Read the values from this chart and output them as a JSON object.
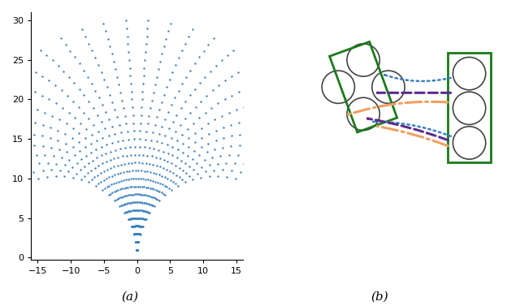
{
  "fig_width": 6.4,
  "fig_height": 3.77,
  "dpi": 100,
  "dot_color": "#3a7fc1",
  "dot_size": 3,
  "n_trajectories": 30,
  "n_steps": 30,
  "label_a": "(a)",
  "label_b": "(b)",
  "xlim_a": [
    -16,
    16
  ],
  "ylim_a": [
    -0.3,
    31
  ],
  "xticks_a": [
    -15,
    -10,
    -5,
    0,
    5,
    10,
    15
  ],
  "yticks_a": [
    0,
    5,
    10,
    15,
    20,
    25,
    30
  ],
  "green_color": "#1a7a1a",
  "dark_gray": "#444444",
  "purple_color": "#5b2d8e",
  "orange_color": "#f0a060",
  "blue_arrow_color": "#3a7fc1"
}
